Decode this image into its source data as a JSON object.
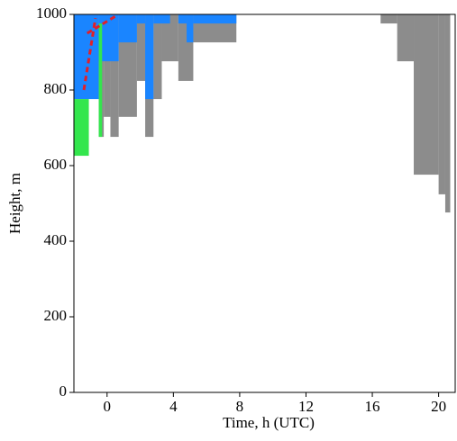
{
  "chart_data": {
    "type": "step-region",
    "xlabel": "Time, h (UTC)",
    "ylabel": "Height, m",
    "xlim": [
      -2,
      21
    ],
    "ylim": [
      0,
      1000
    ],
    "xticks": [
      0,
      4,
      8,
      12,
      16,
      20
    ],
    "yticks": [
      0,
      200,
      400,
      600,
      800,
      1000
    ],
    "series": [
      {
        "color": "#8c8c8c",
        "bins": [
          -0.5,
          -0.2,
          0.2,
          0.7,
          1.8,
          2.3,
          2.8,
          3.3,
          4.3,
          5.2,
          7.8,
          16.5,
          17.5,
          18.5,
          20.0,
          20.4,
          20.7
        ],
        "values": [
          676,
          729,
          676,
          729,
          824,
          676,
          776,
          876,
          824,
          926,
          null,
          976,
          876,
          576,
          524,
          476
        ]
      },
      {
        "color": "#1a85ff",
        "bins": [
          -2,
          -0.5,
          0.7,
          1.8,
          2.3,
          2.8,
          3.8,
          4.3,
          4.8,
          5.2,
          7.8
        ],
        "values": [
          776,
          876,
          926,
          976,
          776,
          976,
          null,
          976,
          926,
          976
        ]
      },
      {
        "color": "#33e64d",
        "bins": [
          -2,
          -1.1,
          -0.5,
          -0.3
        ],
        "values": [
          626,
          null,
          676
        ],
        "tops": [
          776,
          null,
          976
        ]
      }
    ],
    "lines": [
      {
        "color": "#e0202a",
        "x": [
          -1.4,
          -0.7
        ],
        "values": [
          800,
          990
        ]
      },
      {
        "color": "#e0202a",
        "x": [
          -1.2,
          0.5
        ],
        "values": [
          950,
          995
        ]
      }
    ]
  }
}
